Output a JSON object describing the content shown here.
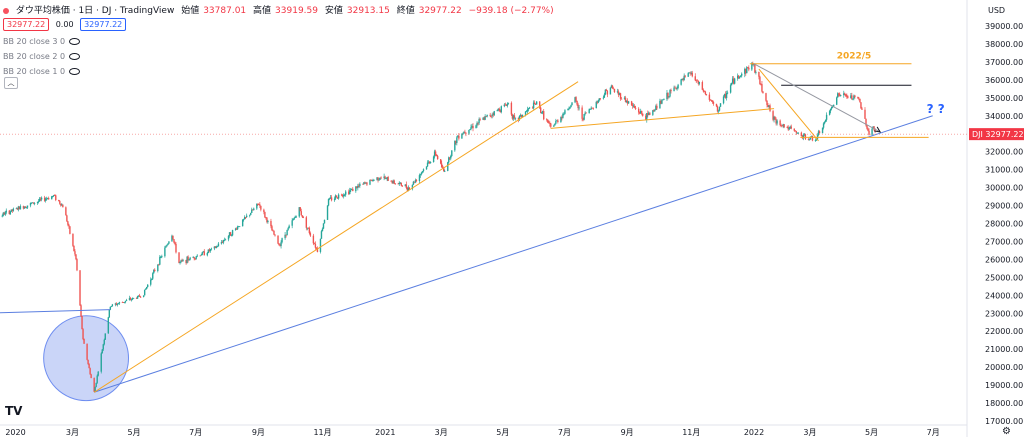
{
  "header": {
    "symbol_name": "ダウ平均株価 · 1日 · DJ · TradingView",
    "open_label": "始値",
    "open": "33787.01",
    "high_label": "高値",
    "high": "33919.59",
    "low_label": "安値",
    "low": "32913.15",
    "close_label": "終値",
    "close": "32977.22",
    "change": "−939.18 (−2.77%)",
    "price_box": "32977.22",
    "spread": "0.00",
    "price_box2": "32977.22"
  },
  "indicators": [
    "BB 20 close 3 0",
    "BB 20 close 2 0",
    "BB 20 close 1 0"
  ],
  "axis": {
    "currency": "USD",
    "price_tag_symbol": "DJI",
    "price_tag_value": "32977.22"
  },
  "annotations": {
    "label_2022_5": "2022/5",
    "question": "? ?"
  },
  "colors": {
    "up": "#26a69a",
    "down": "#ef5350",
    "trend_blue": "#5b7fe0",
    "trend_orange": "#f5a623",
    "circle_fill": "#aebff5"
  },
  "chart_data": {
    "type": "candlestick",
    "title": "ダウ平均株価 · 1日 · DJ",
    "ylim": [
      16500,
      39500
    ],
    "y_ticks": [
      17000,
      18000,
      19000,
      20000,
      21000,
      22000,
      23000,
      24000,
      25000,
      26000,
      27000,
      28000,
      29000,
      30000,
      31000,
      32000,
      33000,
      34000,
      35000,
      36000,
      37000,
      38000,
      39000
    ],
    "x_ticks": [
      {
        "date": "2020-01-01",
        "label": "2020"
      },
      {
        "date": "2020-03-01",
        "label": "3月"
      },
      {
        "date": "2020-05-01",
        "label": "5月"
      },
      {
        "date": "2020-07-01",
        "label": "7月"
      },
      {
        "date": "2020-09-01",
        "label": "9月"
      },
      {
        "date": "2020-11-01",
        "label": "11月"
      },
      {
        "date": "2021-01-01",
        "label": "2021"
      },
      {
        "date": "2021-03-01",
        "label": "3月"
      },
      {
        "date": "2021-05-01",
        "label": "5月"
      },
      {
        "date": "2021-07-01",
        "label": "7月"
      },
      {
        "date": "2021-09-01",
        "label": "9月"
      },
      {
        "date": "2021-11-01",
        "label": "11月"
      },
      {
        "date": "2022-01-01",
        "label": "2022"
      },
      {
        "date": "2022-03-01",
        "label": "3月"
      },
      {
        "date": "2022-05-01",
        "label": "5月"
      },
      {
        "date": "2022-07-01",
        "label": "7月"
      }
    ],
    "price_path": [
      [
        "2019-12-01",
        28000
      ],
      [
        "2020-01-01",
        28700
      ],
      [
        "2020-02-12",
        29550
      ],
      [
        "2020-02-22",
        28900
      ],
      [
        "2020-03-05",
        26000
      ],
      [
        "2020-03-12",
        21500
      ],
      [
        "2020-03-23",
        18600
      ],
      [
        "2020-04-08",
        23400
      ],
      [
        "2020-05-10",
        24000
      ],
      [
        "2020-06-08",
        27400
      ],
      [
        "2020-06-15",
        25800
      ],
      [
        "2020-07-20",
        26600
      ],
      [
        "2020-08-10",
        27700
      ],
      [
        "2020-09-02",
        29100
      ],
      [
        "2020-09-22",
        26800
      ],
      [
        "2020-10-12",
        28800
      ],
      [
        "2020-10-30",
        26500
      ],
      [
        "2020-11-10",
        29300
      ],
      [
        "2020-12-31",
        30600
      ],
      [
        "2021-01-29",
        29980
      ],
      [
        "2021-02-24",
        31900
      ],
      [
        "2021-03-04",
        30900
      ],
      [
        "2021-03-18",
        32900
      ],
      [
        "2021-05-07",
        34700
      ],
      [
        "2021-05-13",
        33700
      ],
      [
        "2021-06-04",
        34700
      ],
      [
        "2021-06-18",
        33300
      ],
      [
        "2021-07-12",
        34900
      ],
      [
        "2021-07-19",
        33900
      ],
      [
        "2021-08-16",
        35600
      ],
      [
        "2021-09-20",
        33900
      ],
      [
        "2021-11-03",
        36400
      ],
      [
        "2021-11-30",
        34300
      ],
      [
        "2021-12-15",
        35900
      ],
      [
        "2022-01-04",
        36900
      ],
      [
        "2022-01-24",
        33800
      ],
      [
        "2022-02-24",
        32800
      ],
      [
        "2022-03-08",
        32700
      ],
      [
        "2022-03-29",
        35200
      ],
      [
        "2022-04-19",
        34900
      ],
      [
        "2022-04-29",
        33000
      ],
      [
        "2022-05-03",
        33400
      ],
      [
        "2022-05-05",
        32977
      ]
    ],
    "last_ohlc": {
      "open": 33787.01,
      "high": 33919.59,
      "low": 32913.15,
      "close": 32977.22
    },
    "trend_lines": [
      {
        "color": "blue",
        "from": [
          "2019-12-01",
          23000
        ],
        "to": [
          "2020-04-08",
          23200
        ]
      },
      {
        "color": "blue",
        "from": [
          "2020-03-23",
          18600
        ],
        "to": [
          "2022-07-01",
          34000
        ]
      },
      {
        "color": "orange",
        "from": [
          "2020-03-23",
          18600
        ],
        "to": [
          "2021-07-15",
          35900
        ]
      },
      {
        "color": "orange",
        "from": [
          "2021-06-18",
          33300
        ],
        "to": [
          "2022-01-25",
          34400
        ]
      },
      {
        "color": "orange",
        "from": [
          "2022-01-01",
          36900
        ],
        "to": [
          "2022-06-10",
          36900
        ]
      },
      {
        "color": "orange",
        "from": [
          "2022-02-20",
          32800
        ],
        "to": [
          "2022-06-27",
          32800
        ]
      },
      {
        "color": "orange",
        "from": [
          "2022-01-10",
          36600
        ],
        "to": [
          "2022-03-10",
          32600
        ]
      },
      {
        "color": "black",
        "from": [
          "2022-02-01",
          35700
        ],
        "to": [
          "2022-06-10",
          35700
        ]
      },
      {
        "color": "gray",
        "from": [
          "2022-01-05",
          36900
        ],
        "to": [
          "2022-05-10",
          33100
        ]
      }
    ],
    "circle": {
      "center": [
        "2020-03-15",
        20500
      ],
      "radius_days": 42
    }
  }
}
